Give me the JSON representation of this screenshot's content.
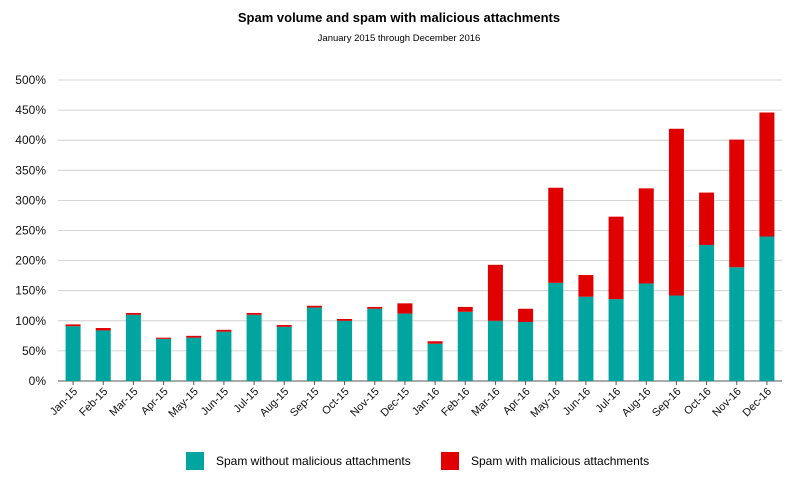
{
  "chart_data": {
    "type": "bar",
    "stacked": true,
    "title": "Spam volume and spam with malicious attachments",
    "subtitle": "January 2015 through December 2016",
    "xlabel": "",
    "ylabel": "",
    "ylim": [
      0,
      500
    ],
    "y_ticks": [
      "0%",
      "50%",
      "100%",
      "150%",
      "200%",
      "250%",
      "300%",
      "350%",
      "400%",
      "450%",
      "500%"
    ],
    "grid": "horizontal",
    "legend_placement": "bottom",
    "categories": [
      "Jan-15",
      "Feb-15",
      "Mar-15",
      "Apr-15",
      "May-15",
      "Jun-15",
      "Jul-15",
      "Aug-15",
      "Sep-15",
      "Oct-15",
      "Nov-15",
      "Dec-15",
      "Jan-16",
      "Feb-16",
      "Mar-16",
      "Apr-16",
      "May-16",
      "Jun-16",
      "Jul-16",
      "Aug-16",
      "Sep-16",
      "Oct-16",
      "Nov-16",
      "Dec-16"
    ],
    "series": [
      {
        "name": "Spam without malicious attachments",
        "color": "#00a5a0",
        "values": [
          91,
          84,
          110,
          70,
          72,
          82,
          110,
          90,
          122,
          100,
          120,
          112,
          62,
          115,
          100,
          98,
          163,
          140,
          136,
          162,
          142,
          226,
          189,
          240
        ]
      },
      {
        "name": "Spam with malicious attachments",
        "color": "#e00000",
        "values": [
          3,
          4,
          3,
          2,
          3,
          3,
          3,
          3,
          3,
          3,
          3,
          17,
          4,
          8,
          93,
          22,
          158,
          36,
          137,
          158,
          277,
          87,
          212,
          206
        ]
      }
    ]
  }
}
